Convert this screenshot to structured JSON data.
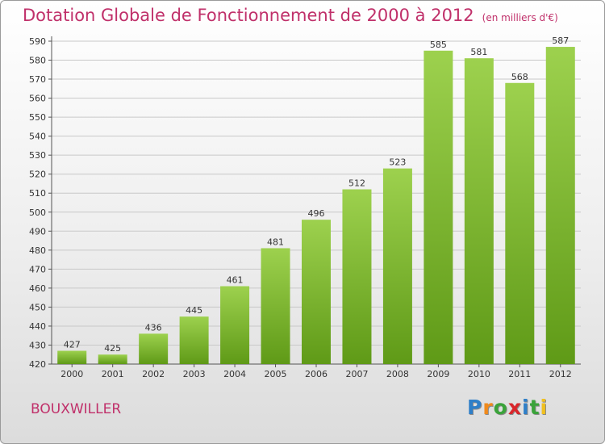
{
  "title": "Dotation Globale de Fonctionnement de 2000 à 2012",
  "unit_note": "(en milliers d'€)",
  "commune": "BOUXWILLER",
  "logo": {
    "letters": [
      "P",
      "r",
      "o",
      "x",
      "i",
      "t",
      "i"
    ],
    "colors": [
      "#2f7fc8",
      "#f08a1c",
      "#3aa33a",
      "#d9262b",
      "#2f7fc8",
      "#3aa33a",
      "#f0c020"
    ]
  },
  "colors": {
    "bar_top": "#9dd14e",
    "bar_bottom": "#5f9a17",
    "grid": "#c8c8c8",
    "title": "#c0306a",
    "text": "#333333"
  },
  "chart_data": {
    "type": "bar",
    "title": "Dotation Globale de Fonctionnement de 2000 à 2012",
    "categories": [
      "2000",
      "2001",
      "2002",
      "2003",
      "2004",
      "2005",
      "2006",
      "2007",
      "2008",
      "2009",
      "2010",
      "2011",
      "2012"
    ],
    "values": [
      427,
      425,
      436,
      445,
      461,
      481,
      496,
      512,
      523,
      585,
      581,
      568,
      587
    ],
    "xlabel": "",
    "ylabel": "",
    "ylim": [
      420,
      590
    ],
    "yticks": [
      420,
      430,
      440,
      450,
      460,
      470,
      480,
      490,
      500,
      510,
      520,
      530,
      540,
      550,
      560,
      570,
      580,
      590
    ],
    "grid": true,
    "data_labels": true
  }
}
